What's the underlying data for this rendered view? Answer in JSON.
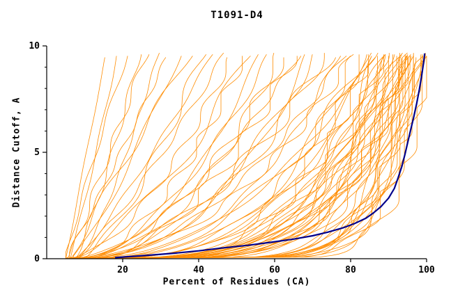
{
  "chart_data": {
    "type": "line",
    "title": "T1091-D4",
    "xlabel": "Percent of Residues (CA)",
    "ylabel": "Distance Cutoff, A",
    "xlim": [
      0,
      100
    ],
    "ylim": [
      0,
      10
    ],
    "x_ticks": [
      20,
      40,
      60,
      80,
      100
    ],
    "y_ticks_major": [
      0,
      5,
      10
    ],
    "y_ticks_minor": [
      1,
      2,
      3,
      4,
      6,
      7,
      8,
      9
    ],
    "grid": false,
    "legend": "none",
    "colors": {
      "model_lines": "#FF8C00",
      "highlight_line": "#00008B",
      "axes": "#000000",
      "background": "#FFFFFF"
    },
    "highlight_series": {
      "points": [
        [
          18,
          0.05
        ],
        [
          20,
          0.08
        ],
        [
          26,
          0.15
        ],
        [
          33,
          0.25
        ],
        [
          40,
          0.37
        ],
        [
          46,
          0.5
        ],
        [
          53,
          0.63
        ],
        [
          59,
          0.77
        ],
        [
          65,
          0.92
        ],
        [
          70,
          1.08
        ],
        [
          74,
          1.25
        ],
        [
          78,
          1.45
        ],
        [
          81,
          1.65
        ],
        [
          84,
          1.9
        ],
        [
          86,
          2.15
        ],
        [
          88,
          2.45
        ],
        [
          90,
          2.85
        ],
        [
          91.5,
          3.3
        ],
        [
          92.5,
          3.8
        ],
        [
          93.5,
          4.35
        ],
        [
          94.3,
          4.9
        ],
        [
          95,
          5.45
        ],
        [
          95.8,
          6.05
        ],
        [
          96.6,
          6.65
        ],
        [
          97.4,
          7.3
        ],
        [
          98.1,
          7.95
        ],
        [
          98.7,
          8.6
        ],
        [
          99.2,
          9.2
        ],
        [
          99.5,
          9.65
        ]
      ]
    },
    "model_curves_format": "[start_percent, percent_at_10A, shape_exponent]",
    "model_curves": [
      [
        5,
        16,
        1.0
      ],
      [
        6,
        19,
        0.9
      ],
      [
        5,
        22,
        1.1
      ],
      [
        7,
        25,
        0.8
      ],
      [
        6,
        27,
        1.0
      ],
      [
        8,
        30,
        0.75
      ],
      [
        5,
        33,
        0.95
      ],
      [
        7,
        36,
        0.85
      ],
      [
        6,
        39,
        1.05
      ],
      [
        9,
        42,
        0.7
      ],
      [
        8,
        45,
        0.9
      ],
      [
        7,
        48,
        0.8
      ],
      [
        6,
        50,
        0.6
      ],
      [
        8,
        53,
        0.55
      ],
      [
        5,
        55,
        0.65
      ],
      [
        7,
        57,
        0.5
      ],
      [
        9,
        60,
        0.6
      ],
      [
        6,
        62,
        0.45
      ],
      [
        8,
        64,
        0.55
      ],
      [
        10,
        66,
        0.5
      ],
      [
        7,
        68,
        0.6
      ],
      [
        5,
        70,
        0.4
      ],
      [
        9,
        72,
        0.5
      ],
      [
        6,
        74,
        0.45
      ],
      [
        8,
        76,
        0.55
      ],
      [
        10,
        78,
        0.4
      ],
      [
        7,
        80,
        0.5
      ],
      [
        5,
        82,
        0.45
      ],
      [
        9,
        84,
        0.35
      ],
      [
        6,
        86,
        0.4
      ],
      [
        8,
        88,
        0.45
      ],
      [
        10,
        90,
        0.35
      ],
      [
        5,
        82,
        0.3
      ],
      [
        6,
        84,
        0.28
      ],
      [
        7,
        85,
        0.25
      ],
      [
        5,
        86,
        0.3
      ],
      [
        8,
        87,
        0.22
      ],
      [
        6,
        88,
        0.26
      ],
      [
        9,
        88,
        0.2
      ],
      [
        5,
        89,
        0.24
      ],
      [
        7,
        90,
        0.28
      ],
      [
        6,
        90,
        0.2
      ],
      [
        8,
        91,
        0.25
      ],
      [
        5,
        91,
        0.18
      ],
      [
        9,
        92,
        0.22
      ],
      [
        6,
        92,
        0.26
      ],
      [
        7,
        93,
        0.2
      ],
      [
        5,
        93,
        0.24
      ],
      [
        8,
        94,
        0.18
      ],
      [
        6,
        94,
        0.22
      ],
      [
        9,
        95,
        0.2
      ],
      [
        5,
        95,
        0.25
      ],
      [
        7,
        96,
        0.18
      ],
      [
        6,
        96,
        0.22
      ],
      [
        8,
        96,
        0.2
      ],
      [
        5,
        97,
        0.18
      ],
      [
        7,
        97,
        0.2
      ],
      [
        5,
        90,
        0.15
      ],
      [
        6,
        92,
        0.12
      ],
      [
        5,
        93,
        0.14
      ],
      [
        7,
        94,
        0.1
      ],
      [
        6,
        95,
        0.13
      ],
      [
        5,
        95,
        0.1
      ],
      [
        8,
        96,
        0.12
      ],
      [
        6,
        96,
        0.09
      ],
      [
        5,
        97,
        0.11
      ],
      [
        7,
        97,
        0.13
      ],
      [
        6,
        98,
        0.1
      ],
      [
        5,
        98,
        0.12
      ],
      [
        8,
        98,
        0.09
      ],
      [
        6,
        99,
        0.11
      ],
      [
        5,
        99,
        0.09
      ],
      [
        7,
        99,
        0.13
      ],
      [
        6,
        100,
        0.1
      ],
      [
        5,
        100,
        0.08
      ]
    ]
  }
}
